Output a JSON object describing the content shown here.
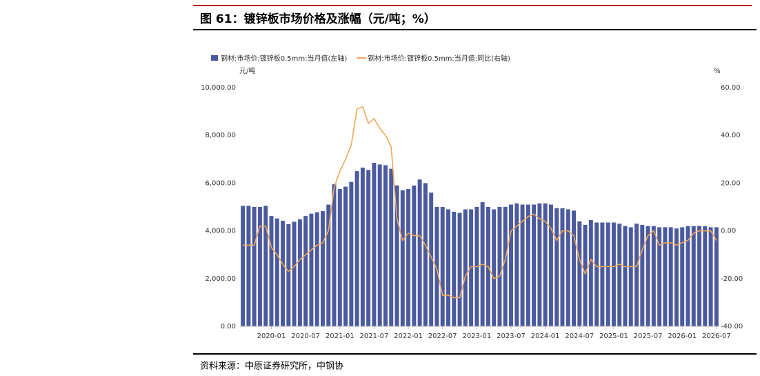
{
  "chart_data": {
    "type": "bar_line",
    "title": "图 61：镀锌板市场价格及涨幅（元/吨；%）",
    "source": "资料来源：中原证券研究所，中钢协",
    "y_label": "元/吨",
    "y2_label": "%",
    "categories": [
      null,
      null,
      null,
      null,
      null,
      "2020-01",
      null,
      null,
      null,
      null,
      null,
      "2020-07",
      null,
      null,
      null,
      null,
      null,
      "2021-01",
      null,
      null,
      null,
      null,
      null,
      "2021-07",
      null,
      null,
      null,
      null,
      null,
      "2022-01",
      null,
      null,
      null,
      null,
      null,
      "2022-07",
      null,
      null,
      null,
      null,
      null,
      "2023-01",
      null,
      null,
      null,
      null,
      null,
      "2023-07",
      null,
      null,
      null,
      null,
      null,
      "2024-01",
      null,
      null,
      null,
      null,
      null,
      "2024-07",
      null,
      null,
      null,
      null,
      null,
      "2025-01",
      null,
      null,
      null,
      null,
      null,
      "2025-07",
      null,
      null,
      null,
      null,
      null,
      "2026-01",
      null,
      null,
      null,
      null,
      null,
      "2026-07"
    ],
    "series": [
      {
        "name": "钢材:市场价:镀锌板0.5mm:当月值(左轴)",
        "type": "bar",
        "color": "#4b5a9f",
        "values": [
          5050,
          5050,
          5000,
          5000,
          5050,
          4620,
          4520,
          4420,
          4280,
          4380,
          4480,
          4620,
          4720,
          4780,
          4830,
          5100,
          5950,
          5750,
          5850,
          6050,
          6500,
          6650,
          6550,
          6850,
          6780,
          6750,
          6600,
          5900,
          5700,
          5750,
          5900,
          6150,
          6000,
          5600,
          5000,
          5000,
          4900,
          4800,
          4750,
          4900,
          4900,
          5000,
          5200,
          5000,
          4900,
          5000,
          5000,
          5100,
          5150,
          5100,
          5100,
          5100,
          5150,
          5150,
          5100,
          4950,
          4950,
          4900,
          4850,
          4400,
          4250,
          4450,
          4350,
          4350,
          4350,
          4350,
          4300,
          4200,
          4150,
          4300,
          4250,
          4200,
          4200,
          4150,
          4150,
          4150,
          4100,
          4150,
          4200,
          4200,
          4200,
          4200,
          4150,
          4150
        ]
      },
      {
        "name": "钢材:市场价:镀锌板0.5mm:当月值:同比(右轴)",
        "type": "line",
        "axis": "y2",
        "color": "#f0a656",
        "values": [
          -6,
          -6,
          -6,
          2,
          2,
          -7,
          -10,
          -14,
          -17,
          -15,
          -12,
          -10,
          -8,
          -6,
          -5,
          0,
          18,
          25,
          30,
          36,
          51,
          52,
          45,
          47,
          43,
          40,
          35,
          5,
          -4,
          -1,
          -2,
          -2,
          -6,
          -11,
          -16,
          -27,
          -27,
          -28,
          -28,
          -19,
          -15,
          -15,
          -14,
          -15,
          -20,
          -19,
          -12,
          0,
          2,
          4,
          6,
          7,
          5,
          4,
          1,
          -4,
          0,
          0,
          -2,
          -12,
          -18,
          -12,
          -15,
          -15,
          -15,
          -15,
          -14,
          -15,
          -15,
          -15,
          -8,
          -2,
          0,
          -6,
          -5,
          -5,
          -6,
          -5,
          -4,
          -1,
          0,
          0,
          0,
          -4
        ]
      }
    ],
    "ylim": [
      0,
      10000
    ],
    "yticks": [
      {
        "value": 0,
        "label": "0.00"
      },
      {
        "value": 2000,
        "label": "2,000.00"
      },
      {
        "value": 4000,
        "label": "4,000.00"
      },
      {
        "value": 6000,
        "label": "6,000.00"
      },
      {
        "value": 8000,
        "label": "8,000.00"
      },
      {
        "value": 10000,
        "label": "10,000.00"
      }
    ],
    "y2lim": [
      -40,
      60
    ],
    "y2ticks": [
      {
        "value": -40,
        "label": "-40.00"
      },
      {
        "value": -20,
        "label": "-20.00"
      },
      {
        "value": 0,
        "label": "0.00"
      },
      {
        "value": 20,
        "label": "20.00"
      },
      {
        "value": 40,
        "label": "40.00"
      },
      {
        "value": 60,
        "label": "60.00"
      }
    ],
    "legend": "top-left"
  }
}
